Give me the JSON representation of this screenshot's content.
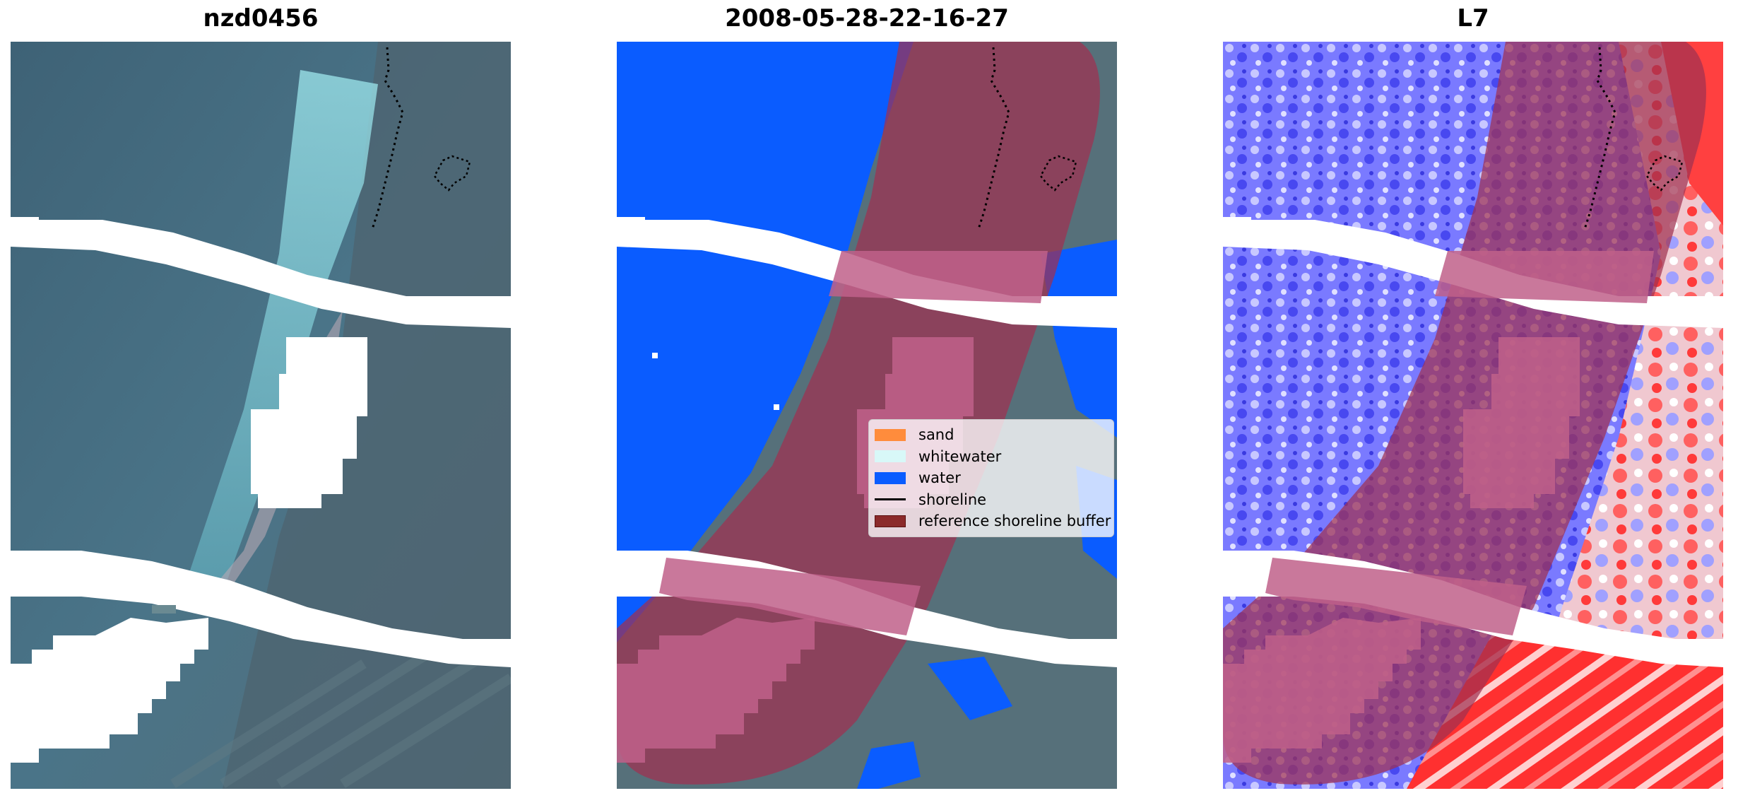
{
  "panels": [
    {
      "title": "nzd0456"
    },
    {
      "title": "2008-05-28-22-16-27"
    },
    {
      "title": "L7"
    }
  ],
  "legend": {
    "items": [
      {
        "label": "sand",
        "color": "#ff8c3c",
        "kind": "patch"
      },
      {
        "label": "whitewater",
        "color": "#d8f8f8",
        "kind": "patch"
      },
      {
        "label": "water",
        "color": "#0a5cff",
        "kind": "patch"
      },
      {
        "label": "shoreline",
        "color": "#000000",
        "kind": "line"
      },
      {
        "label": "reference shoreline buffer",
        "color": "#8b2a2a",
        "kind": "patch"
      }
    ]
  },
  "colors": {
    "rgb_background": "#4a6a7e",
    "water": "#0a5cff",
    "buffer_overlay": "#a03050",
    "index_blue": "#5a5aff",
    "index_red": "#ff2020"
  }
}
